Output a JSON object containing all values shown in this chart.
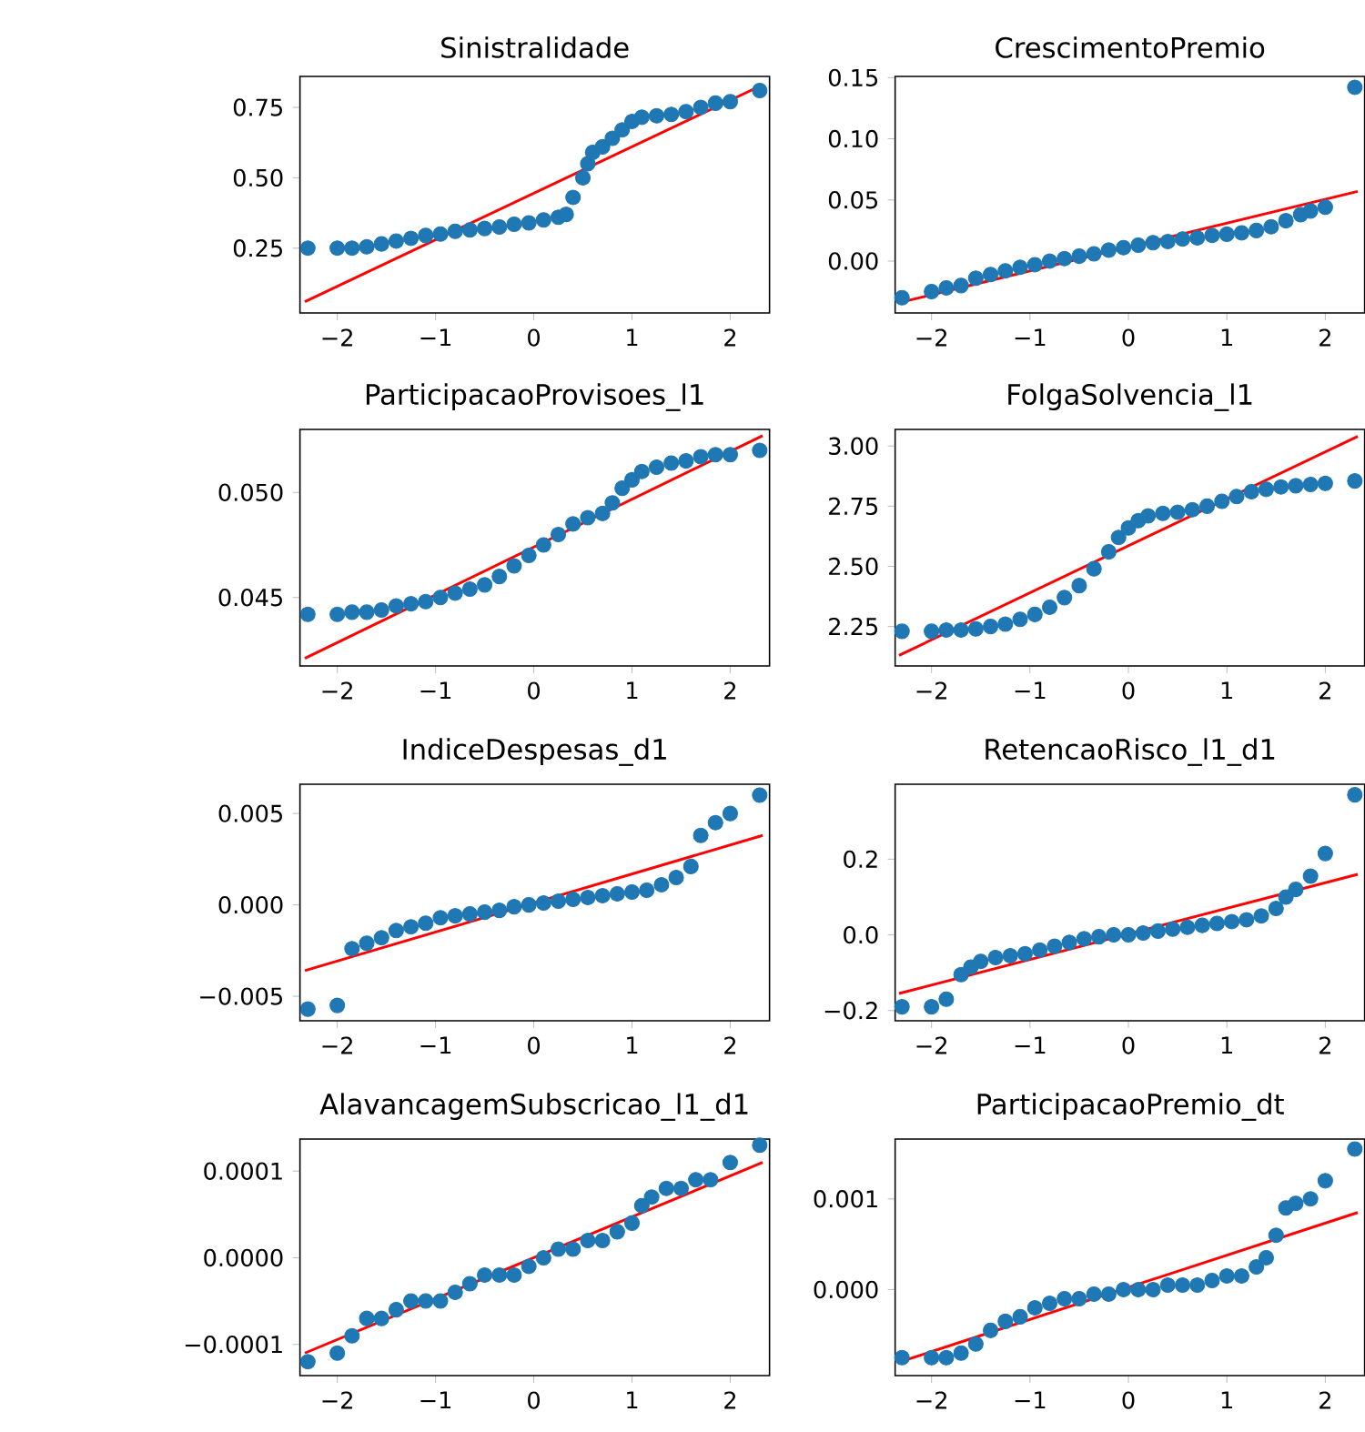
{
  "chart_data": [
    {
      "type": "scatter",
      "title": "Sinistralidade",
      "xlim": [
        -2.38,
        2.4
      ],
      "ylim": [
        0.02,
        0.86
      ],
      "xticks": [
        {
          "value": -2,
          "label": "−2"
        },
        {
          "value": -1,
          "label": "−1"
        },
        {
          "value": 0,
          "label": "0"
        },
        {
          "value": 1,
          "label": "1"
        },
        {
          "value": 2,
          "label": "2"
        }
      ],
      "yticks": [
        {
          "value": 0.25,
          "label": "0.25"
        },
        {
          "value": 0.5,
          "label": "0.50"
        },
        {
          "value": 0.75,
          "label": "0.75"
        }
      ],
      "series": [
        {
          "type": "scatter",
          "marker": "circle",
          "color": "#1f77b4",
          "x": [
            -2.3,
            -2.0,
            -1.85,
            -1.7,
            -1.55,
            -1.4,
            -1.25,
            -1.1,
            -0.95,
            -0.8,
            -0.65,
            -0.5,
            -0.35,
            -0.2,
            -0.05,
            0.1,
            0.25,
            0.33,
            0.4,
            0.5,
            0.55,
            0.6,
            0.7,
            0.8,
            0.9,
            1.0,
            1.1,
            1.25,
            1.4,
            1.55,
            1.7,
            1.85,
            2.0,
            2.3
          ],
          "values": [
            0.25,
            0.25,
            0.25,
            0.255,
            0.265,
            0.275,
            0.285,
            0.295,
            0.3,
            0.31,
            0.315,
            0.32,
            0.325,
            0.335,
            0.34,
            0.35,
            0.36,
            0.37,
            0.43,
            0.5,
            0.55,
            0.59,
            0.61,
            0.64,
            0.67,
            0.7,
            0.715,
            0.72,
            0.725,
            0.735,
            0.75,
            0.765,
            0.77,
            0.81
          ]
        },
        {
          "type": "line",
          "color": "#ff0000",
          "x": [
            -2.33,
            2.33
          ],
          "values": [
            0.06,
            0.83
          ]
        }
      ]
    },
    {
      "type": "scatter",
      "title": "CrescimentoPremio",
      "xlim": [
        -2.37,
        2.4
      ],
      "ylim": [
        -0.0424,
        0.151
      ],
      "xticks": [
        {
          "value": -2,
          "label": "−2"
        },
        {
          "value": -1,
          "label": "−1"
        },
        {
          "value": 0,
          "label": "0"
        },
        {
          "value": 1,
          "label": "1"
        },
        {
          "value": 2,
          "label": "2"
        }
      ],
      "yticks": [
        {
          "value": 0,
          "label": "0.00"
        },
        {
          "value": 0.05,
          "label": "0.05"
        },
        {
          "value": 0.1,
          "label": "0.10"
        },
        {
          "value": 0.15,
          "label": "0.15"
        }
      ],
      "series": [
        {
          "type": "scatter",
          "marker": "circle",
          "color": "#1f77b4",
          "x": [
            -2.3,
            -2.0,
            -1.85,
            -1.7,
            -1.55,
            -1.4,
            -1.25,
            -1.1,
            -0.95,
            -0.8,
            -0.65,
            -0.5,
            -0.35,
            -0.2,
            -0.05,
            0.1,
            0.25,
            0.4,
            0.55,
            0.7,
            0.85,
            1.0,
            1.15,
            1.3,
            1.45,
            1.6,
            1.75,
            1.85,
            2.0,
            2.3
          ],
          "values": [
            -0.03,
            -0.025,
            -0.022,
            -0.02,
            -0.014,
            -0.011,
            -0.008,
            -0.005,
            -0.003,
            0.0,
            0.002,
            0.004,
            0.006,
            0.009,
            0.011,
            0.013,
            0.015,
            0.016,
            0.018,
            0.019,
            0.021,
            0.022,
            0.023,
            0.025,
            0.028,
            0.033,
            0.038,
            0.041,
            0.044,
            0.142
          ]
        },
        {
          "type": "line",
          "color": "#ff0000",
          "x": [
            -2.33,
            2.33
          ],
          "values": [
            -0.034,
            0.057
          ]
        }
      ]
    },
    {
      "type": "scatter",
      "title": "ParticipacaoProvisoes_l1",
      "xlim": [
        -2.38,
        2.4
      ],
      "ylim": [
        0.04174,
        0.053
      ],
      "xticks": [
        {
          "value": -2,
          "label": "−2"
        },
        {
          "value": -1,
          "label": "−1"
        },
        {
          "value": 0,
          "label": "0"
        },
        {
          "value": 1,
          "label": "1"
        },
        {
          "value": 2,
          "label": "2"
        }
      ],
      "yticks": [
        {
          "value": 0.045,
          "label": "0.045"
        },
        {
          "value": 0.05,
          "label": "0.050"
        }
      ],
      "series": [
        {
          "type": "scatter",
          "marker": "circle",
          "color": "#1f77b4",
          "x": [
            -2.3,
            -2.0,
            -1.85,
            -1.7,
            -1.55,
            -1.4,
            -1.25,
            -1.1,
            -0.95,
            -0.8,
            -0.65,
            -0.5,
            -0.35,
            -0.2,
            -0.05,
            0.1,
            0.25,
            0.4,
            0.55,
            0.7,
            0.8,
            0.9,
            1.0,
            1.1,
            1.25,
            1.4,
            1.55,
            1.7,
            1.85,
            2.0,
            2.3
          ],
          "values": [
            0.0442,
            0.0442,
            0.0443,
            0.0443,
            0.0444,
            0.0446,
            0.0447,
            0.0448,
            0.045,
            0.0452,
            0.0454,
            0.0456,
            0.046,
            0.0465,
            0.047,
            0.0475,
            0.048,
            0.0485,
            0.0488,
            0.049,
            0.0495,
            0.0502,
            0.0506,
            0.051,
            0.0512,
            0.0514,
            0.0515,
            0.0517,
            0.0518,
            0.0518,
            0.052
          ]
        },
        {
          "type": "line",
          "color": "#ff0000",
          "x": [
            -2.33,
            2.33
          ],
          "values": [
            0.0421,
            0.0527
          ]
        }
      ]
    },
    {
      "type": "scatter",
      "title": "FolgaSolvencia_l1",
      "xlim": [
        -2.37,
        2.4
      ],
      "ylim": [
        2.086,
        3.069
      ],
      "xticks": [
        {
          "value": -2,
          "label": "−2"
        },
        {
          "value": -1,
          "label": "−1"
        },
        {
          "value": 0,
          "label": "0"
        },
        {
          "value": 1,
          "label": "1"
        },
        {
          "value": 2,
          "label": "2"
        }
      ],
      "yticks": [
        {
          "value": 2.25,
          "label": "2.25"
        },
        {
          "value": 2.5,
          "label": "2.50"
        },
        {
          "value": 2.75,
          "label": "2.75"
        },
        {
          "value": 3.0,
          "label": "3.00"
        }
      ],
      "series": [
        {
          "type": "scatter",
          "marker": "circle",
          "color": "#1f77b4",
          "x": [
            -2.3,
            -2.0,
            -1.85,
            -1.7,
            -1.55,
            -1.4,
            -1.25,
            -1.1,
            -0.95,
            -0.8,
            -0.65,
            -0.5,
            -0.35,
            -0.2,
            -0.1,
            0.0,
            0.1,
            0.2,
            0.35,
            0.5,
            0.65,
            0.8,
            0.95,
            1.1,
            1.25,
            1.4,
            1.55,
            1.7,
            1.85,
            2.0,
            2.3
          ],
          "values": [
            2.23,
            2.23,
            2.235,
            2.235,
            2.24,
            2.25,
            2.26,
            2.28,
            2.3,
            2.33,
            2.37,
            2.42,
            2.49,
            2.56,
            2.62,
            2.66,
            2.69,
            2.71,
            2.72,
            2.725,
            2.735,
            2.75,
            2.77,
            2.79,
            2.81,
            2.82,
            2.83,
            2.835,
            2.84,
            2.845,
            2.855
          ]
        },
        {
          "type": "line",
          "color": "#ff0000",
          "x": [
            -2.33,
            2.33
          ],
          "values": [
            2.13,
            3.04
          ]
        }
      ]
    },
    {
      "type": "scatter",
      "title": "IndiceDespesas_d1",
      "xlim": [
        -2.38,
        2.4
      ],
      "ylim": [
        -0.00634,
        0.0066
      ],
      "xticks": [
        {
          "value": -2,
          "label": "−2"
        },
        {
          "value": -1,
          "label": "−1"
        },
        {
          "value": 0,
          "label": "0"
        },
        {
          "value": 1,
          "label": "1"
        },
        {
          "value": 2,
          "label": "2"
        }
      ],
      "yticks": [
        {
          "value": -0.005,
          "label": "−0.005"
        },
        {
          "value": 0,
          "label": "0.000"
        },
        {
          "value": 0.005,
          "label": "0.005"
        }
      ],
      "series": [
        {
          "type": "scatter",
          "marker": "circle",
          "color": "#1f77b4",
          "x": [
            -2.3,
            -2.0,
            -1.85,
            -1.7,
            -1.55,
            -1.4,
            -1.25,
            -1.1,
            -0.95,
            -0.8,
            -0.65,
            -0.5,
            -0.35,
            -0.2,
            -0.05,
            0.1,
            0.25,
            0.4,
            0.55,
            0.7,
            0.85,
            1.0,
            1.15,
            1.3,
            1.45,
            1.6,
            1.7,
            1.85,
            2.0,
            2.3
          ],
          "values": [
            -0.0057,
            -0.0055,
            -0.0024,
            -0.0021,
            -0.0018,
            -0.0014,
            -0.0012,
            -0.001,
            -0.0007,
            -0.0006,
            -0.0005,
            -0.0004,
            -0.0003,
            -0.0001,
            0.0,
            0.0001,
            0.0002,
            0.0003,
            0.0004,
            0.0005,
            0.0006,
            0.0007,
            0.0008,
            0.0011,
            0.0015,
            0.0021,
            0.0038,
            0.0045,
            0.005,
            0.006
          ]
        },
        {
          "type": "line",
          "color": "#ff0000",
          "x": [
            -2.33,
            2.33
          ],
          "values": [
            -0.0036,
            0.0038
          ]
        }
      ]
    },
    {
      "type": "scatter",
      "title": "RetencaoRisco_l1_d1",
      "xlim": [
        -2.37,
        2.4
      ],
      "ylim": [
        -0.227,
        0.398
      ],
      "xticks": [
        {
          "value": -2,
          "label": "−2"
        },
        {
          "value": -1,
          "label": "−1"
        },
        {
          "value": 0,
          "label": "0"
        },
        {
          "value": 1,
          "label": "1"
        },
        {
          "value": 2,
          "label": "2"
        }
      ],
      "yticks": [
        {
          "value": -0.2,
          "label": "−0.2"
        },
        {
          "value": 0,
          "label": "0.0"
        },
        {
          "value": 0.2,
          "label": "0.2"
        }
      ],
      "series": [
        {
          "type": "scatter",
          "marker": "circle",
          "color": "#1f77b4",
          "x": [
            -2.3,
            -2.0,
            -1.85,
            -1.7,
            -1.6,
            -1.5,
            -1.35,
            -1.2,
            -1.05,
            -0.9,
            -0.75,
            -0.6,
            -0.45,
            -0.3,
            -0.15,
            0.0,
            0.15,
            0.3,
            0.45,
            0.6,
            0.75,
            0.9,
            1.05,
            1.2,
            1.35,
            1.5,
            1.6,
            1.7,
            1.85,
            2.0,
            2.3
          ],
          "values": [
            -0.19,
            -0.19,
            -0.17,
            -0.105,
            -0.085,
            -0.07,
            -0.06,
            -0.055,
            -0.05,
            -0.04,
            -0.03,
            -0.02,
            -0.01,
            -0.005,
            0.0,
            0.0,
            0.005,
            0.01,
            0.015,
            0.02,
            0.025,
            0.03,
            0.035,
            0.04,
            0.05,
            0.07,
            0.1,
            0.12,
            0.155,
            0.215,
            0.37
          ]
        },
        {
          "type": "line",
          "color": "#ff0000",
          "x": [
            -2.33,
            2.33
          ],
          "values": [
            -0.155,
            0.16
          ]
        }
      ]
    },
    {
      "type": "scatter",
      "title": "AlavancagemSubscricao_l1_d1",
      "xlim": [
        -2.38,
        2.4
      ],
      "ylim": [
        -0.000136,
        0.000137
      ],
      "xticks": [
        {
          "value": -2,
          "label": "−2"
        },
        {
          "value": -1,
          "label": "−1"
        },
        {
          "value": 0,
          "label": "0"
        },
        {
          "value": 1,
          "label": "1"
        },
        {
          "value": 2,
          "label": "2"
        }
      ],
      "yticks": [
        {
          "value": -0.0001,
          "label": "−0.0001"
        },
        {
          "value": 0,
          "label": "0.0000"
        },
        {
          "value": 0.0001,
          "label": "0.0001"
        }
      ],
      "series": [
        {
          "type": "scatter",
          "marker": "circle",
          "color": "#1f77b4",
          "x": [
            -2.3,
            -2.0,
            -1.85,
            -1.7,
            -1.55,
            -1.4,
            -1.25,
            -1.1,
            -0.95,
            -0.8,
            -0.65,
            -0.5,
            -0.35,
            -0.2,
            -0.05,
            0.1,
            0.25,
            0.4,
            0.55,
            0.7,
            0.85,
            1.0,
            1.1,
            1.2,
            1.35,
            1.5,
            1.65,
            1.8,
            2.0,
            2.3
          ],
          "values": [
            -0.00012,
            -0.00011,
            -9e-05,
            -7e-05,
            -7e-05,
            -6e-05,
            -5e-05,
            -5e-05,
            -5e-05,
            -4e-05,
            -3e-05,
            -2e-05,
            -2e-05,
            -2e-05,
            -1e-05,
            0.0,
            1e-05,
            1e-05,
            2e-05,
            2e-05,
            3e-05,
            4e-05,
            6e-05,
            7e-05,
            8e-05,
            8e-05,
            9e-05,
            9e-05,
            0.00011,
            0.00013
          ]
        },
        {
          "type": "line",
          "color": "#ff0000",
          "x": [
            -2.33,
            2.33
          ],
          "values": [
            -0.00011,
            0.00011
          ]
        }
      ]
    },
    {
      "type": "scatter",
      "title": "ParticipacaoPremio_dt",
      "xlim": [
        -2.37,
        2.4
      ],
      "ylim": [
        -0.000948,
        0.00166
      ],
      "xticks": [
        {
          "value": -2,
          "label": "−2"
        },
        {
          "value": -1,
          "label": "−1"
        },
        {
          "value": 0,
          "label": "0"
        },
        {
          "value": 1,
          "label": "1"
        },
        {
          "value": 2,
          "label": "2"
        }
      ],
      "yticks": [
        {
          "value": 0,
          "label": "0.000"
        },
        {
          "value": 0.001,
          "label": "0.001"
        }
      ],
      "series": [
        {
          "type": "scatter",
          "marker": "circle",
          "color": "#1f77b4",
          "x": [
            -2.3,
            -2.0,
            -1.85,
            -1.7,
            -1.55,
            -1.4,
            -1.25,
            -1.1,
            -0.95,
            -0.8,
            -0.65,
            -0.5,
            -0.35,
            -0.2,
            -0.05,
            0.1,
            0.25,
            0.4,
            0.55,
            0.7,
            0.85,
            1.0,
            1.15,
            1.3,
            1.4,
            1.5,
            1.6,
            1.7,
            1.85,
            2.0,
            2.3
          ],
          "values": [
            -0.00075,
            -0.00075,
            -0.00075,
            -0.0007,
            -0.0006,
            -0.00045,
            -0.00035,
            -0.0003,
            -0.0002,
            -0.00015,
            -0.0001,
            -0.0001,
            -5e-05,
            -5e-05,
            0.0,
            0.0,
            0.0,
            5e-05,
            5e-05,
            5e-05,
            0.0001,
            0.00015,
            0.00015,
            0.00025,
            0.00035,
            0.0006,
            0.0009,
            0.00095,
            0.001,
            0.0012,
            0.00155
          ]
        },
        {
          "type": "line",
          "color": "#ff0000",
          "x": [
            -2.33,
            2.33
          ],
          "values": [
            -0.0008,
            0.00085
          ]
        }
      ]
    }
  ]
}
